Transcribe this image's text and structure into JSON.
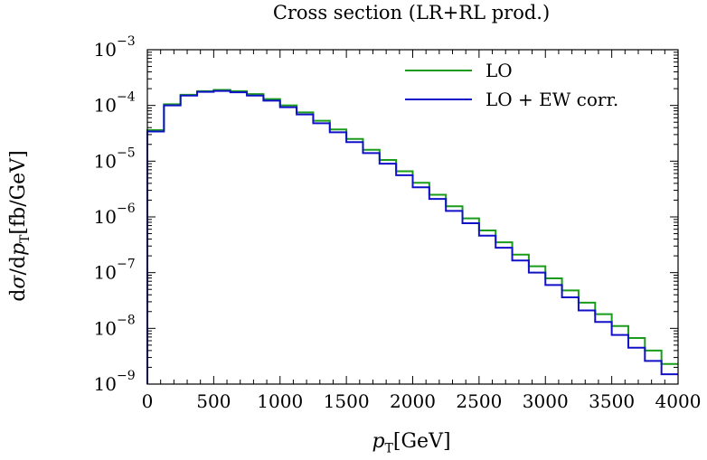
{
  "chart_data": {
    "type": "line",
    "style": "step-histogram",
    "title": "Cross section (LR+RL prod.)",
    "xlabel": "pT[GeV]",
    "ylabel": "dσ/dpT[fb/GeV]",
    "xlim": [
      0,
      4000
    ],
    "ylim": [
      1e-09,
      0.001
    ],
    "yscale": "log",
    "xticks": [
      "0",
      "500",
      "1000",
      "1500",
      "2000",
      "2500",
      "3000",
      "3500",
      "4000"
    ],
    "yticks": [
      "10−9",
      "10−8",
      "10−7",
      "10−6",
      "10−5",
      "10−4",
      "10−3"
    ],
    "grid": false,
    "legend_position": "top-right",
    "bin_edges": [
      0,
      125,
      250,
      375,
      500,
      625,
      750,
      875,
      1000,
      1125,
      1250,
      1375,
      1500,
      1625,
      1750,
      1875,
      2000,
      2125,
      2250,
      2375,
      2500,
      2625,
      2750,
      2875,
      3000,
      3125,
      3250,
      3375,
      3500,
      3625,
      3750,
      3875,
      4000
    ],
    "series": [
      {
        "name": "LO",
        "color": "#1a9b1a",
        "values": [
          3.6e-05,
          0.000105,
          0.000155,
          0.00018,
          0.00019,
          0.00018,
          0.00016,
          0.00013,
          0.0001,
          7.5e-05,
          5.3e-05,
          3.7e-05,
          2.5e-05,
          1.6e-05,
          1.05e-05,
          6.6e-06,
          4.1e-06,
          2.5e-06,
          1.55e-06,
          9.4e-07,
          5.7e-07,
          3.5e-07,
          2.1e-07,
          1.3e-07,
          7.9e-08,
          4.8e-08,
          2.9e-08,
          1.8e-08,
          1.1e-08,
          6.7e-09,
          4e-09,
          2.3e-09
        ]
      },
      {
        "name": "LO + EW corr.",
        "color": "#1010c8",
        "values": [
          3.4e-05,
          0.0001,
          0.00015,
          0.000175,
          0.000182,
          0.000172,
          0.00015,
          0.000122,
          9.3e-05,
          6.9e-05,
          4.8e-05,
          3.3e-05,
          2.2e-05,
          1.4e-05,
          9e-06,
          5.6e-06,
          3.4e-06,
          2.1e-06,
          1.28e-06,
          7.7e-07,
          4.6e-07,
          2.8e-07,
          1.65e-07,
          1e-07,
          6e-08,
          3.6e-08,
          2.1e-08,
          1.3e-08,
          7.6e-09,
          4.5e-09,
          2.6e-09,
          1.5e-09
        ]
      }
    ]
  }
}
